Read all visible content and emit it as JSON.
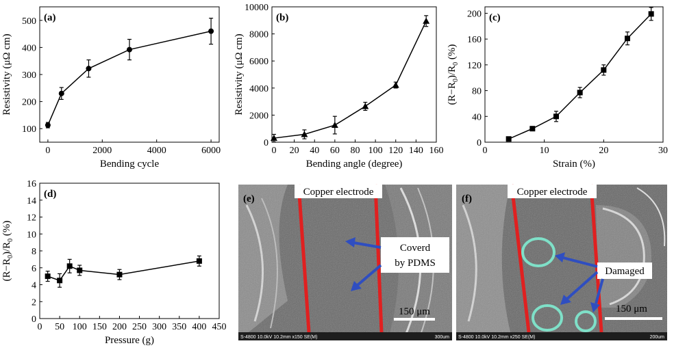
{
  "chart_data": [
    {
      "panel": "(a)",
      "type": "line",
      "xlabel": "Bending cycle",
      "ylabel": "Resistivity (μΩ cm)",
      "xlim": [
        -300,
        6300
      ],
      "ylim": [
        50,
        550
      ],
      "xticks": [
        0,
        2000,
        4000,
        6000
      ],
      "yticks": [
        100,
        200,
        300,
        400,
        500
      ],
      "x": [
        0,
        500,
        1500,
        3000,
        6000
      ],
      "y": [
        113,
        230,
        322,
        392,
        460
      ],
      "yerr": [
        10,
        22,
        32,
        38,
        48
      ],
      "marker": "circle"
    },
    {
      "panel": "(b)",
      "type": "line",
      "xlabel": "Bending angle (degree)",
      "ylabel": "Resistivity (μΩ cm)",
      "xlim": [
        -2,
        160
      ],
      "ylim": [
        0,
        10000
      ],
      "xticks": [
        0,
        20,
        40,
        60,
        80,
        100,
        120,
        140,
        160
      ],
      "yticks": [
        0,
        2000,
        4000,
        6000,
        8000,
        10000
      ],
      "x": [
        0,
        30,
        60,
        90,
        120,
        150
      ],
      "y": [
        300,
        580,
        1260,
        2650,
        4220,
        8950
      ],
      "yerr": [
        280,
        330,
        650,
        300,
        220,
        400
      ],
      "marker": "triangle"
    },
    {
      "panel": "(c)",
      "type": "line",
      "xlabel": "Strain (%)",
      "ylabel": "(R−R0)/R0 (%)",
      "xlim": [
        0,
        30
      ],
      "ylim": [
        0,
        210
      ],
      "xticks": [
        0,
        10,
        20,
        30
      ],
      "yticks": [
        0,
        40,
        80,
        120,
        160,
        200
      ],
      "x": [
        4,
        8,
        12,
        16,
        20,
        24,
        28
      ],
      "y": [
        5,
        21,
        40,
        77,
        112,
        161,
        199
      ],
      "yerr": [
        3,
        3,
        8,
        8,
        8,
        10,
        10
      ],
      "marker": "square"
    },
    {
      "panel": "(d)",
      "type": "line",
      "xlabel": "Pressure (g)",
      "ylabel": "(R−R0)/R0 (%)",
      "xlim": [
        0,
        450
      ],
      "ylim": [
        0,
        16
      ],
      "xticks": [
        0,
        50,
        100,
        150,
        200,
        250,
        300,
        350,
        400,
        450
      ],
      "yticks": [
        0,
        2,
        4,
        6,
        8,
        10,
        12,
        14,
        16
      ],
      "x": [
        20,
        50,
        75,
        100,
        200,
        400
      ],
      "y": [
        5.0,
        4.5,
        6.2,
        5.7,
        5.2,
        6.8
      ],
      "yerr": [
        0.6,
        0.8,
        0.8,
        0.6,
        0.6,
        0.6
      ],
      "marker": "square"
    }
  ],
  "sem": {
    "e": {
      "panel_label": "(e)",
      "electrode_label": "Copper electrode",
      "annotation_lines": [
        "Coverd",
        "by PDMS"
      ],
      "scale_bar": "150 μm",
      "footer_left": "S-4800 10.0kV 10.2mm x150 SE(M)",
      "footer_right": "300um"
    },
    "f": {
      "panel_label": "(f)",
      "electrode_label": "Copper electrode",
      "annotation": "Damaged",
      "scale_bar": "150 μm",
      "footer_left": "S-4800 10.0kV 10.2mm x250 SE(M)",
      "footer_right": "200um"
    }
  },
  "colors": {
    "electrode_line": "#e02020",
    "arrow": "#2f4ec0",
    "damage_circle": "#7fe0c8"
  }
}
